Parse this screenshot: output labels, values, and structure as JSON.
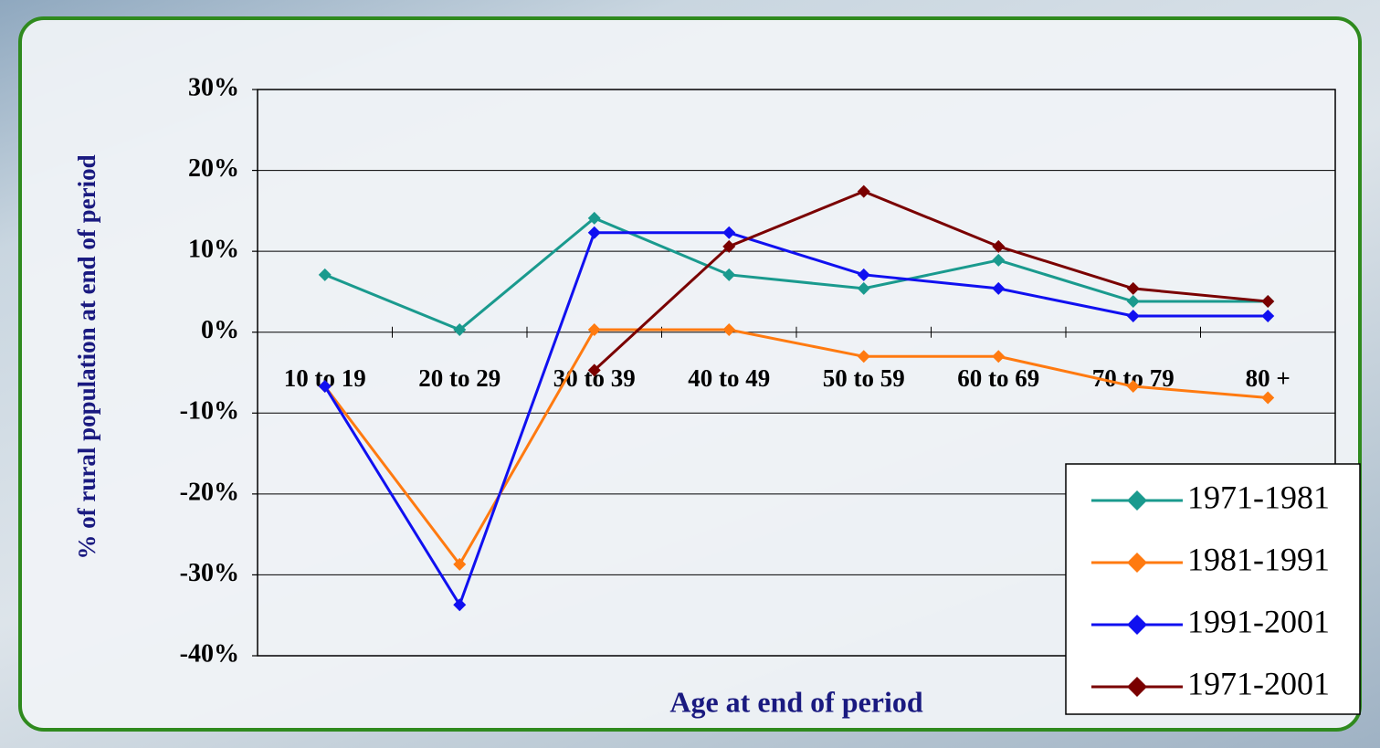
{
  "chart_data": {
    "type": "line",
    "x_label": "Age at end of period",
    "y_label": "% of rural population at end of period",
    "categories": [
      "10 to 19",
      "20 to 29",
      "30 to 39",
      "40 to 49",
      "50 to 59",
      "60 to 69",
      "70 to 79",
      "80 +"
    ],
    "series": [
      {
        "name": "1971-1981",
        "color": "#1a9a8e",
        "values": [
          7.1,
          0.3,
          14.1,
          7.1,
          5.4,
          8.9,
          3.8,
          3.8
        ]
      },
      {
        "name": "1981-1991",
        "color": "#ff7a10",
        "values": [
          -6.7,
          -28.7,
          0.3,
          0.3,
          -3.0,
          -3.0,
          -6.7,
          -8.1
        ]
      },
      {
        "name": "1991-2001",
        "color": "#1010f0",
        "values": [
          -6.7,
          -33.7,
          12.3,
          12.3,
          7.1,
          5.4,
          2.0,
          2.0
        ]
      },
      {
        "name": "1971-2001",
        "color": "#7a0000",
        "values": [
          null,
          null,
          -4.7,
          10.6,
          17.4,
          10.6,
          5.4,
          3.8
        ]
      }
    ],
    "ylim": [
      -40,
      30
    ],
    "yticks": [
      {
        "value": -40,
        "label": "-40%"
      },
      {
        "value": -30,
        "label": "-30%"
      },
      {
        "value": -20,
        "label": "-20%"
      },
      {
        "value": -10,
        "label": "-10%"
      },
      {
        "value": 0,
        "label": "0%"
      },
      {
        "value": 10,
        "label": "10%"
      },
      {
        "value": 20,
        "label": "20%"
      },
      {
        "value": 30,
        "label": "30%"
      }
    ],
    "grid": true
  }
}
